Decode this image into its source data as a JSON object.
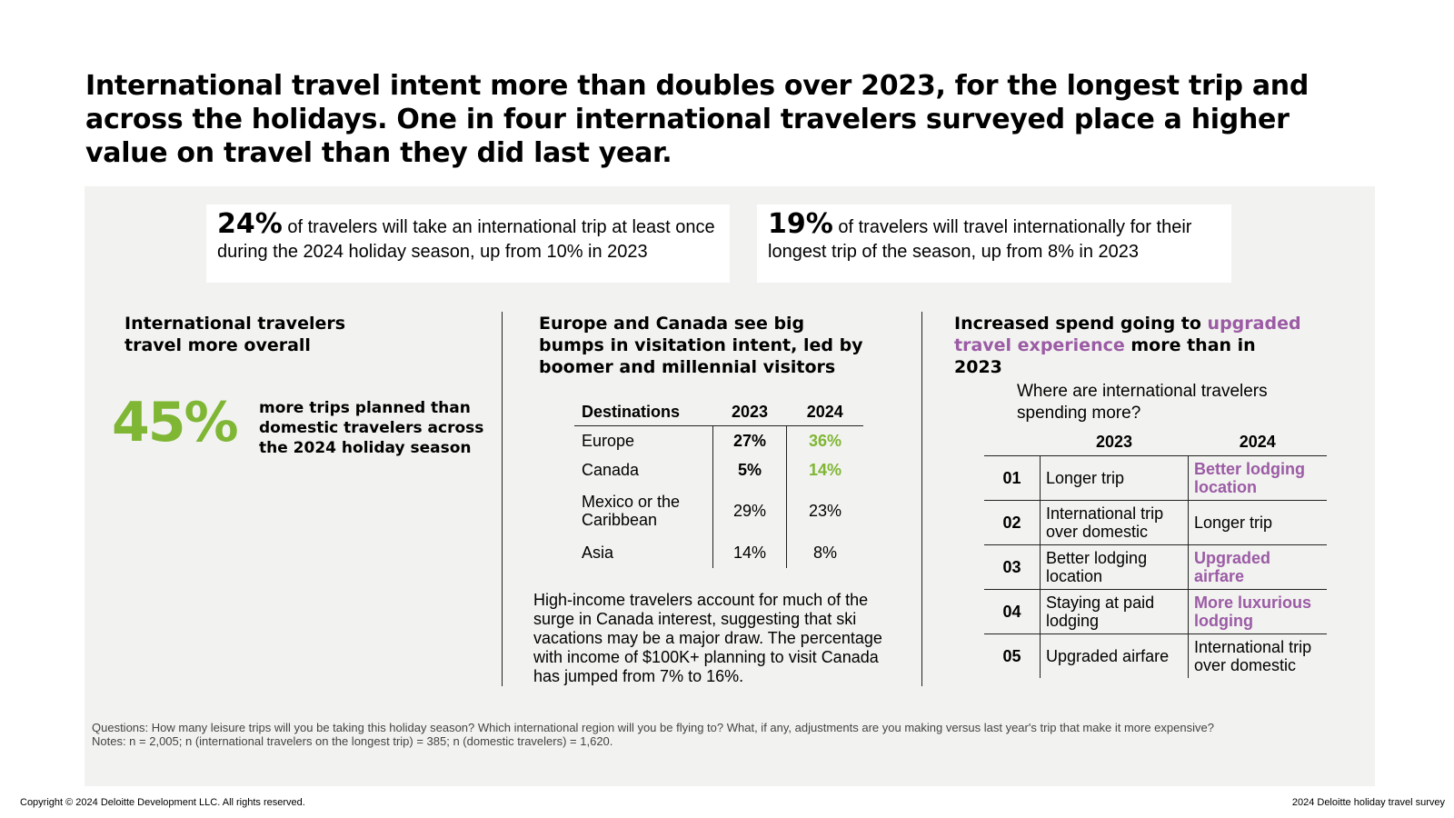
{
  "headline": "International travel intent more than doubles over 2023, for the longest trip and across the holidays. One in four international travelers surveyed place a higher value on travel than they did last year.",
  "stats": [
    {
      "value": "24%",
      "text": "of travelers will take an international trip at least once during the 2024 holiday season, up from 10% in 2023"
    },
    {
      "value": "19%",
      "text": "of travelers will travel internationally for their longest trip of the season, up from 8% in 2023"
    }
  ],
  "col1": {
    "heading": "International travelers travel more overall",
    "big_value": "45%",
    "big_desc": "more trips planned than domestic travelers across the 2024 holiday season"
  },
  "col2": {
    "heading": "Europe and Canada see big bumps in visitation intent, led by boomer and millennial visitors",
    "table_headers": [
      "Destinations",
      "2023",
      "2024"
    ],
    "rows": [
      {
        "dest": "Europe",
        "y2023": "27%",
        "y2024": "36%"
      },
      {
        "dest": "Canada",
        "y2023": "5%",
        "y2024": "14%"
      },
      {
        "dest": "Mexico or the Caribbean",
        "y2023": "29%",
        "y2024": "23%"
      },
      {
        "dest": "Asia",
        "y2023": "14%",
        "y2024": "8%"
      }
    ],
    "note": "High-income travelers account for much of the surge in Canada interest, suggesting that ski vacations may be a major draw. The percentage with income of $100K+ planning to visit Canada has jumped from 7% to 16%."
  },
  "col3": {
    "heading_pre": "Increased spend going to ",
    "heading_highlight": "upgraded travel experience",
    "heading_post": " more than in 2023",
    "subheading": "Where are international travelers spending more?",
    "table_headers": [
      "2023",
      "2024"
    ],
    "rows": [
      {
        "rank": "01",
        "y2023": "Longer trip",
        "y2024": "Better lodging location"
      },
      {
        "rank": "02",
        "y2023": "International trip over domestic",
        "y2024": "Longer trip"
      },
      {
        "rank": "03",
        "y2023": "Better lodging location",
        "y2024": "Upgraded airfare"
      },
      {
        "rank": "04",
        "y2023": "Staying at paid lodging",
        "y2024": "More luxurious lodging"
      },
      {
        "rank": "05",
        "y2023": "Upgraded airfare",
        "y2024": "International trip over domestic"
      }
    ]
  },
  "questions": "Questions: How many leisure trips will you be taking this holiday season? Which international region will you be flying to? What, if any, adjustments are you making versus last year's trip that make it more expensive?",
  "notes": "Notes: n = 2,005; n (international travelers on the longest trip) = 385; n (domestic travelers) = 1,620.",
  "footer": {
    "copyright": "Copyright © 2024 Deloitte Development LLC. All rights reserved.",
    "source": "2024 Deloitte holiday travel survey"
  },
  "colors": {
    "panel": "#f2f2f0",
    "green": "#7fb634",
    "purple": "#9b5ba5"
  }
}
